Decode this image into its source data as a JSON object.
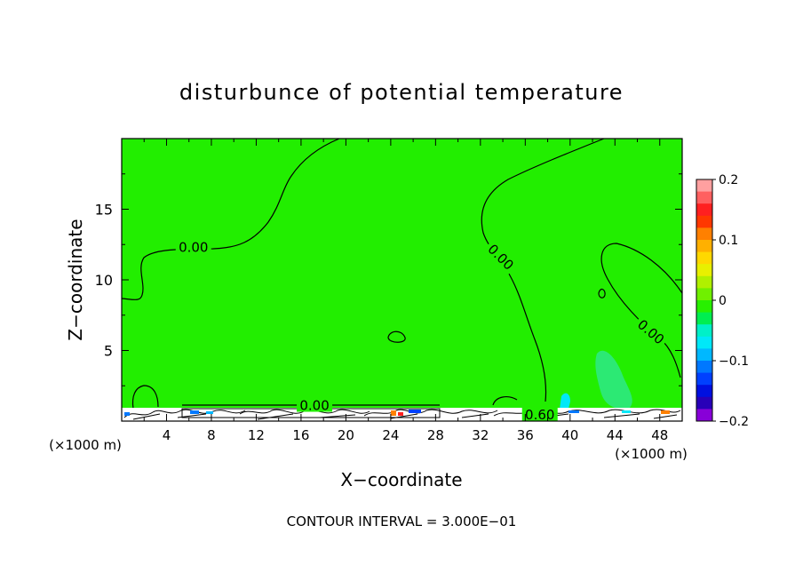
{
  "chart_data": {
    "type": "heatmap",
    "title": "disturbunce of potential temperature",
    "xlabel": "X−coordinate",
    "ylabel": "Z−coordinate",
    "x_unit_left": "(×1000 m)",
    "x_unit_right": "(×1000 m)",
    "xlim": [
      0,
      50
    ],
    "ylim": [
      0,
      20
    ],
    "x_ticks": [
      4,
      8,
      12,
      16,
      20,
      24,
      28,
      32,
      36,
      40,
      44,
      48
    ],
    "y_ticks": [
      5,
      10,
      15
    ],
    "footer": "CONTOUR INTERVAL = 3.000E−01",
    "contour_labels": [
      {
        "text": "0.00",
        "x": 6.4,
        "z": 12.3,
        "angle": 0
      },
      {
        "text": "0.00",
        "x": 33.8,
        "z": 11.6,
        "angle": 45
      },
      {
        "text": "0.00",
        "x": 47.2,
        "z": 6.3,
        "angle": 40
      },
      {
        "text": "0.00",
        "x": 17.2,
        "z": 1.1,
        "angle": 0
      },
      {
        "text": "0.60",
        "x": 37.3,
        "z": 0.45,
        "angle": 0
      }
    ],
    "colorbar": {
      "ticks": [
        {
          "value": 0.2,
          "label": "0.2"
        },
        {
          "value": 0.1,
          "label": "0.1"
        },
        {
          "value": 0.0,
          "label": "0"
        },
        {
          "value": -0.1,
          "label": "−0.1"
        },
        {
          "value": -0.2,
          "label": "−0.2"
        }
      ],
      "colors_top_to_bottom": [
        "#ffa0a0",
        "#ff6060",
        "#ff2020",
        "#ff3800",
        "#ff8000",
        "#ffb000",
        "#ffd800",
        "#e8f000",
        "#b0f000",
        "#70f000",
        "#28f000",
        "#00ee50",
        "#00f0c8",
        "#00e8f8",
        "#00b8ff",
        "#0078ff",
        "#0040ff",
        "#0010e0",
        "#2800b8",
        "#8800d8"
      ]
    },
    "colors": {
      "background_field": "#22ee00",
      "weak_negative": "#2ee888",
      "contour_line": "#000000"
    }
  }
}
